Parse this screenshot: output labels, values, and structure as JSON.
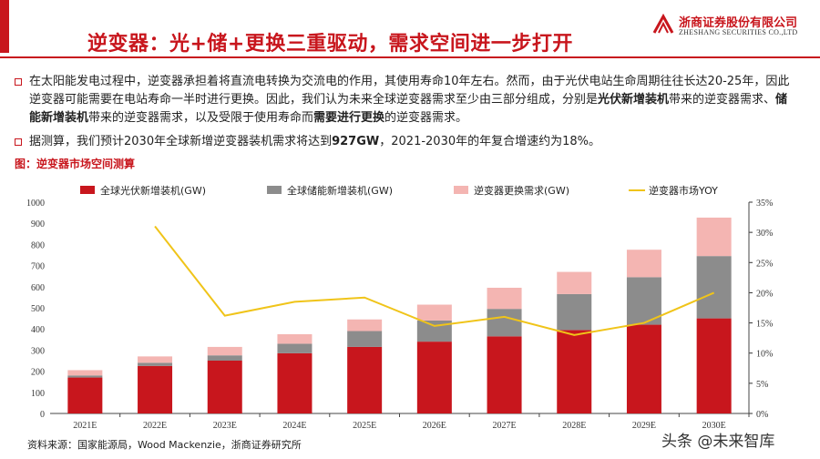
{
  "header": {
    "title": "逆变器：光+储+更换三重驱动，需求空间进一步打开",
    "logo_cn": "浙商证券股份有限公司",
    "logo_en": "ZHESHANG SECURITIES CO.,LTD",
    "accent_color": "#c8161d"
  },
  "body": {
    "p1_a": "在太阳能发电过程中，逆变器承担着将直流电转换为交流电的作用，其使用寿命10年左右。然而，由于光伏电站生命周期往往长达20-25年，因此逆变器可能需要在电站寿命一半时进行更换。因此，我们认为未来全球逆变器需求至少由三部分组成，分别是",
    "p1_b": "光伏新增装机",
    "p1_c": "带来的逆变器需求、",
    "p1_d": "储能新增装机",
    "p1_e": "带来的逆变器需求，以及受限于使用寿命而",
    "p1_f": "需要进行更换",
    "p1_g": "的逆变器需求。",
    "p2_a": "据测算，我们预计2030年全球新增逆变器装机需求将达到",
    "p2_b": "927GW",
    "p2_c": "，2021-2030年的年复合增速约为18%。",
    "figure_label": "图：逆变器市场空间测算"
  },
  "chart_data": {
    "type": "bar",
    "stacked": true,
    "categories": [
      "2021E",
      "2022E",
      "2023E",
      "2024E",
      "2025E",
      "2026E",
      "2027E",
      "2028E",
      "2029E",
      "2030E"
    ],
    "series": [
      {
        "name": "全球光伏新增装机(GW)",
        "color": "#c8161d",
        "values": [
          170,
          225,
          250,
          285,
          315,
          340,
          365,
          395,
          420,
          450
        ]
      },
      {
        "name": "全球储能新增装机(GW)",
        "color": "#8c8c8c",
        "values": [
          10,
          15,
          25,
          45,
          75,
          100,
          130,
          170,
          225,
          295
        ]
      },
      {
        "name": "逆变器更换需求(GW)",
        "color": "#f4b5b2",
        "values": [
          25,
          30,
          40,
          45,
          55,
          75,
          100,
          105,
          130,
          182
        ]
      }
    ],
    "line": {
      "name": "逆变器市场YOY",
      "color": "#f0c419",
      "values": [
        null,
        0.31,
        0.162,
        0.185,
        0.192,
        0.145,
        0.16,
        0.13,
        0.15,
        0.2
      ]
    },
    "ylim": [
      0,
      1000
    ],
    "yticks": [
      "0",
      "100",
      "200",
      "300",
      "400",
      "500",
      "600",
      "700",
      "800",
      "900",
      "1000"
    ],
    "y2lim": [
      0,
      0.35
    ],
    "y2ticks": [
      "0%",
      "5%",
      "10%",
      "15%",
      "20%",
      "25%",
      "30%",
      "35%"
    ],
    "legend_position": "top"
  },
  "footer": {
    "source": "资料来源：国家能源局，Wood Mackenzie，浙商证券研究所",
    "watermark": "头条 @未来智库"
  }
}
